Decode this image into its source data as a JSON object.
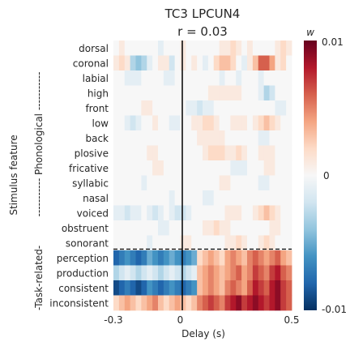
{
  "chart_data": {
    "type": "heatmap",
    "title": "TC3 LPCUN4",
    "subtitle": "r = 0.03",
    "xlabel": "Delay (s)",
    "ylabel": "Stimulus feature",
    "group_labels": [
      {
        "label": "----------- Phonological -----------",
        "rows": [
          0,
          14
        ]
      },
      {
        "label": "-Task-related-",
        "rows": [
          15,
          18
        ]
      }
    ],
    "x_ticks": [
      "-0.3",
      "0",
      "0.5"
    ],
    "x_range": [
      -0.3,
      0.5
    ],
    "rows": [
      "dorsal",
      "coronal",
      "labial",
      "high",
      "front",
      "low",
      "back",
      "plosive",
      "fricative",
      "syllabic",
      "nasal",
      "voiced",
      "obstruent",
      "sonorant",
      "perception",
      "production",
      "consistent",
      "inconsistent"
    ],
    "colorbar": {
      "label": "w",
      "max_label": "0.01",
      "mid_label": "0",
      "min_label": "-0.01",
      "range": [
        -0.01,
        0.01
      ],
      "colormap": "RdBu_r"
    },
    "zero_line_at": 0,
    "divider_after_row": "sonorant",
    "approx_weights_x1000": [
      [
        0,
        1,
        0,
        0,
        0,
        0,
        0,
        0,
        -1,
        0,
        0,
        0,
        1,
        0,
        0,
        0,
        0,
        0,
        0,
        1,
        1,
        2,
        1,
        0,
        1,
        0,
        0,
        0,
        0,
        1,
        2,
        1
      ],
      [
        1,
        2,
        1,
        -3,
        -4,
        -3,
        -1,
        0,
        1,
        1,
        -2,
        0,
        1,
        0,
        1,
        0,
        -1,
        0,
        2,
        3,
        3,
        2,
        0,
        -1,
        1,
        3,
        6,
        6,
        4,
        1,
        2,
        0
      ],
      [
        0,
        0,
        -1,
        -1,
        -1,
        0,
        0,
        0,
        0,
        -1,
        -1,
        0,
        0,
        0,
        0,
        0,
        0,
        0,
        0,
        -1,
        0,
        0,
        -1,
        0,
        0,
        0,
        -1,
        0,
        0,
        0,
        0,
        0
      ],
      [
        0,
        0,
        0,
        0,
        0,
        0,
        0,
        0,
        0,
        0,
        0,
        0,
        0,
        0,
        0,
        0,
        0,
        1,
        1,
        1,
        1,
        1,
        1,
        0,
        0,
        0,
        -1,
        -3,
        -2,
        0,
        0,
        0
      ],
      [
        0,
        0,
        0,
        0,
        0,
        1,
        1,
        0,
        0,
        0,
        0,
        0,
        0,
        -1,
        -1,
        -2,
        -1,
        -1,
        0,
        0,
        0,
        0,
        0,
        0,
        0,
        0,
        0,
        0,
        0,
        -1,
        -1,
        0
      ],
      [
        0,
        0,
        -1,
        -2,
        -1,
        0,
        0,
        1,
        0,
        0,
        -1,
        -1,
        0,
        0,
        1,
        1,
        2,
        2,
        1,
        0,
        0,
        1,
        1,
        1,
        0,
        1,
        2,
        3,
        2,
        1,
        0,
        0
      ],
      [
        0,
        0,
        0,
        0,
        0,
        0,
        0,
        0,
        0,
        0,
        0,
        0,
        0,
        0,
        0,
        1,
        1,
        1,
        1,
        1,
        0,
        0,
        0,
        0,
        0,
        0,
        -1,
        -1,
        0,
        0,
        0,
        0
      ],
      [
        0,
        0,
        0,
        0,
        0,
        0,
        1,
        1,
        0,
        0,
        0,
        0,
        0,
        0,
        0,
        0,
        1,
        2,
        2,
        2,
        1,
        1,
        2,
        1,
        0,
        0,
        1,
        1,
        1,
        0,
        0,
        0
      ],
      [
        0,
        0,
        0,
        0,
        0,
        0,
        0,
        1,
        1,
        0,
        0,
        0,
        0,
        0,
        0,
        0,
        0,
        0,
        0,
        0,
        0,
        -1,
        -1,
        -1,
        0,
        0,
        0,
        1,
        1,
        0,
        0,
        0
      ],
      [
        0,
        0,
        0,
        0,
        0,
        -1,
        0,
        0,
        0,
        0,
        0,
        0,
        0,
        0,
        0,
        0,
        0,
        0,
        0,
        1,
        1,
        0,
        0,
        0,
        0,
        0,
        -1,
        -1,
        0,
        0,
        0,
        0
      ],
      [
        0,
        0,
        0,
        0,
        0,
        0,
        0,
        0,
        0,
        0,
        -1,
        0,
        0,
        0,
        0,
        0,
        -1,
        -1,
        0,
        0,
        0,
        0,
        0,
        0,
        0,
        0,
        0,
        0,
        0,
        0,
        0,
        0
      ],
      [
        -1,
        -1,
        -2,
        -1,
        -1,
        0,
        -1,
        -2,
        -1,
        0,
        -1,
        -2,
        -2,
        -1,
        0,
        0,
        0,
        0,
        0,
        0,
        1,
        1,
        1,
        0,
        0,
        1,
        2,
        3,
        2,
        1,
        0,
        0
      ],
      [
        0,
        0,
        0,
        0,
        0,
        0,
        0,
        0,
        -1,
        -1,
        0,
        0,
        0,
        0,
        0,
        0,
        1,
        1,
        2,
        1,
        1,
        0,
        0,
        0,
        0,
        0,
        0,
        0,
        1,
        1,
        0,
        0
      ],
      [
        0,
        0,
        0,
        0,
        0,
        0,
        -1,
        0,
        0,
        0,
        0,
        0,
        1,
        1,
        0,
        0,
        0,
        0,
        0,
        0,
        1,
        1,
        2,
        1,
        0,
        0,
        1,
        2,
        1,
        0,
        0,
        0
      ],
      [
        -8,
        -7,
        -6,
        -7,
        -8,
        -7,
        -5,
        -6,
        -7,
        -6,
        -5,
        -6,
        -7,
        -6,
        -5,
        2,
        3,
        4,
        3,
        2,
        4,
        5,
        4,
        3,
        5,
        6,
        5,
        4,
        5,
        6,
        4,
        3
      ],
      [
        -3,
        -2,
        -1,
        -2,
        -3,
        -2,
        -1,
        -2,
        -3,
        -2,
        -1,
        -2,
        -3,
        -2,
        -1,
        3,
        4,
        5,
        4,
        3,
        4,
        5,
        6,
        4,
        5,
        7,
        6,
        5,
        7,
        8,
        6,
        5
      ],
      [
        -9,
        -8,
        -7,
        -8,
        -9,
        -8,
        -6,
        -7,
        -8,
        -7,
        -6,
        -7,
        -8,
        -7,
        -6,
        3,
        4,
        5,
        4,
        3,
        5,
        6,
        5,
        4,
        6,
        8,
        7,
        6,
        8,
        9,
        7,
        6
      ],
      [
        2,
        3,
        4,
        3,
        2,
        3,
        4,
        5,
        3,
        2,
        3,
        4,
        3,
        2,
        3,
        5,
        6,
        7,
        6,
        5,
        7,
        8,
        9,
        7,
        8,
        9,
        8,
        7,
        8,
        9,
        7,
        6
      ]
    ]
  }
}
